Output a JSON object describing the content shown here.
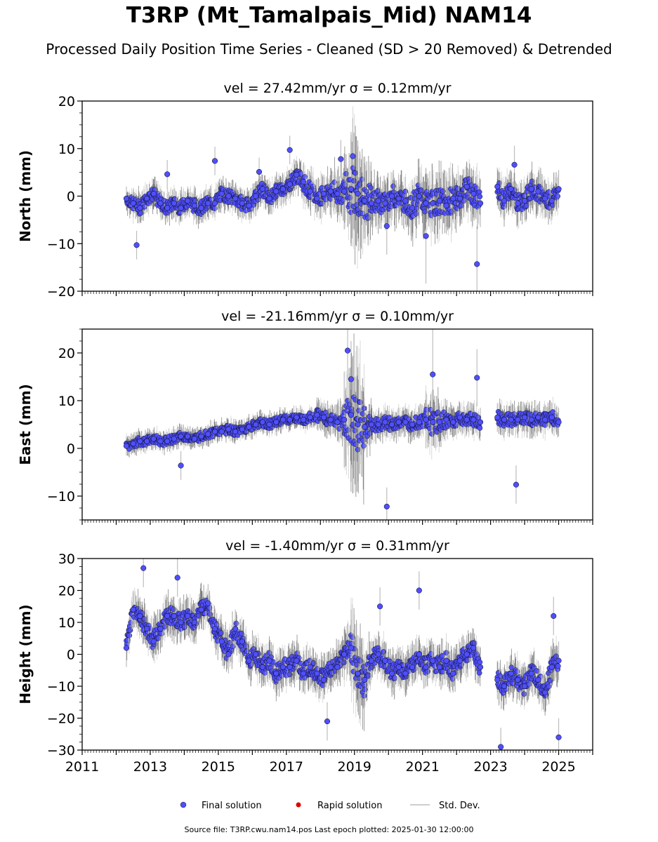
{
  "figure": {
    "title": "T3RP (Mt_Tamalpais_Mid) NAM14",
    "subtitle": "Processed Daily Position Time Series - Cleaned (SD > 20 Removed) & Detrended",
    "footer": "Source file: T3RP.cwu.nam14.pos  Last epoch plotted: 2025-01-30 12:00:00"
  },
  "legend": {
    "items": [
      "Final solution",
      "Rapid solution",
      "Std. Dev."
    ]
  },
  "colors": {
    "final": "#4f4ffd",
    "rapid": "#e00000",
    "stddev": "#bdbdbd",
    "stddev_dense": "#555555"
  },
  "chart_data": [
    {
      "type": "scatter",
      "title": "vel = 27.42mm/yr   σ = 0.12mm/yr",
      "ylabel": "North (mm)",
      "xlim": [
        2011.0,
        2026.0
      ],
      "ylim": [
        -20,
        20
      ],
      "yticks": [
        -20,
        -10,
        0,
        10,
        20
      ],
      "xticks": [
        "2011",
        "2013",
        "2015",
        "2017",
        "2019",
        "2021",
        "2023",
        "2025"
      ],
      "grid": false,
      "series": [
        {
          "name": "Final solution",
          "x": [
            2012.3,
            2012.5,
            2012.7,
            2012.9,
            2013.1,
            2013.3,
            2013.5,
            2013.7,
            2013.9,
            2014.1,
            2014.3,
            2014.5,
            2014.7,
            2014.9,
            2015.1,
            2015.3,
            2015.5,
            2015.7,
            2015.9,
            2016.1,
            2016.3,
            2016.5,
            2016.7,
            2016.9,
            2017.1,
            2017.3,
            2017.5,
            2017.7,
            2017.9,
            2018.1,
            2018.3,
            2018.5,
            2018.7,
            2018.9,
            2019.1,
            2019.3,
            2019.5,
            2019.7,
            2019.9,
            2020.1,
            2020.3,
            2020.5,
            2020.7,
            2020.9,
            2021.1,
            2021.3,
            2021.5,
            2021.7,
            2021.9,
            2022.1,
            2022.3,
            2022.5,
            2022.7,
            2023.2,
            2023.4,
            2023.6,
            2023.8,
            2024.0,
            2024.2,
            2024.4,
            2024.6,
            2024.8,
            2025.0,
            2012.6,
            2013.5,
            2014.9,
            2016.2,
            2017.1,
            2018.6,
            2018.95,
            2019.95,
            2021.1,
            2022.6,
            2023.7
          ],
          "y": [
            -0.5,
            -1.5,
            -2.5,
            -0.5,
            0.5,
            -1.5,
            -2.5,
            -1.5,
            -2.5,
            -1.0,
            -2.0,
            -2.5,
            -1.5,
            -1.5,
            0.5,
            0.0,
            -0.5,
            -1.5,
            -2.0,
            0.0,
            1.5,
            -0.5,
            1.0,
            1.5,
            2.5,
            4.5,
            3.0,
            1.0,
            -0.5,
            0.5,
            1.0,
            0.5,
            1.0,
            1.5,
            0.5,
            -1.0,
            -1.5,
            -1.0,
            -1.5,
            0.0,
            -0.5,
            -1.0,
            -2.5,
            0.0,
            -1.5,
            -1.5,
            -1.0,
            -2.0,
            -0.5,
            -0.5,
            2.0,
            0.5,
            -1.5,
            2.0,
            -1.0,
            1.5,
            -1.5,
            -1.0,
            1.5,
            1.0,
            -0.5,
            -1.0,
            1.5,
            -10.3,
            4.6,
            7.4,
            5.1,
            9.7,
            7.8,
            8.4,
            -6.3,
            -8.4,
            -14.3,
            6.6
          ],
          "err": [
            2.5,
            3,
            3,
            3,
            3,
            3,
            3,
            3,
            3,
            3,
            3,
            3,
            3,
            3,
            3,
            3,
            3,
            3,
            3,
            3,
            3,
            3,
            3,
            3,
            3,
            3,
            4,
            4,
            4,
            4,
            5,
            5,
            8,
            12,
            10,
            8,
            5,
            5,
            5,
            5,
            5,
            5,
            6,
            6,
            6,
            6,
            6,
            6,
            5,
            5,
            5,
            5,
            5,
            4,
            4,
            4,
            4,
            4,
            4,
            4,
            4,
            4,
            4,
            3,
            3,
            3,
            3,
            3,
            4,
            8,
            6,
            10,
            8,
            4
          ]
        },
        {
          "name": "Rapid solution",
          "x": [],
          "y": []
        }
      ]
    },
    {
      "type": "scatter",
      "title": "vel = -21.16mm/yr   σ = 0.10mm/yr",
      "ylabel": "East (mm)",
      "xlim": [
        2011.0,
        2026.0
      ],
      "ylim": [
        -15,
        25
      ],
      "yticks": [
        -10,
        0,
        10,
        20
      ],
      "xticks": [
        "2011",
        "2013",
        "2015",
        "2017",
        "2019",
        "2021",
        "2023",
        "2025"
      ],
      "grid": false,
      "series": [
        {
          "name": "Final solution",
          "x": [
            2012.3,
            2012.5,
            2012.7,
            2012.9,
            2013.1,
            2013.3,
            2013.5,
            2013.7,
            2013.9,
            2014.1,
            2014.3,
            2014.5,
            2014.7,
            2014.9,
            2015.1,
            2015.3,
            2015.5,
            2015.7,
            2015.9,
            2016.1,
            2016.3,
            2016.5,
            2016.7,
            2016.9,
            2017.1,
            2017.3,
            2017.5,
            2017.7,
            2017.9,
            2018.1,
            2018.3,
            2018.5,
            2018.7,
            2018.9,
            2019.1,
            2019.3,
            2019.5,
            2019.7,
            2019.9,
            2020.1,
            2020.3,
            2020.5,
            2020.7,
            2020.9,
            2021.1,
            2021.3,
            2021.5,
            2021.7,
            2021.9,
            2022.1,
            2022.3,
            2022.5,
            2022.7,
            2023.2,
            2023.4,
            2023.6,
            2023.8,
            2024.0,
            2024.2,
            2024.4,
            2024.6,
            2024.8,
            2025.0,
            2013.9,
            2018.8,
            2018.9,
            2019.95,
            2021.3,
            2022.6,
            2023.75
          ],
          "y": [
            0.5,
            1.0,
            1.5,
            1.5,
            2.0,
            1.5,
            1.5,
            2.0,
            2.5,
            2.5,
            2.0,
            2.5,
            3.0,
            3.5,
            3.5,
            4.0,
            3.5,
            4.0,
            4.5,
            5.0,
            5.5,
            5.0,
            5.5,
            6.0,
            6.0,
            6.5,
            6.0,
            6.5,
            7.0,
            6.5,
            6.0,
            5.5,
            6.0,
            7.0,
            5.0,
            4.5,
            5.0,
            5.0,
            5.5,
            5.0,
            5.5,
            5.5,
            5.0,
            5.5,
            6.0,
            5.5,
            5.5,
            6.0,
            5.5,
            6.5,
            6.0,
            6.0,
            5.5,
            6.5,
            6.0,
            6.0,
            6.0,
            6.5,
            6.0,
            6.5,
            6.0,
            6.5,
            5.5,
            -3.6,
            20.5,
            14.5,
            -12.2,
            15.5,
            14.8,
            -7.6
          ],
          "err": [
            2,
            2,
            2,
            2,
            2,
            2,
            2,
            2,
            2,
            2,
            2,
            2,
            2,
            2,
            2,
            2,
            2,
            2,
            2,
            2,
            2,
            2,
            2,
            2,
            2,
            2,
            2,
            2,
            3,
            3,
            3,
            4,
            10,
            14,
            12,
            5,
            3,
            3,
            3,
            3,
            3,
            3,
            3,
            3,
            6,
            5,
            4,
            3,
            3,
            3,
            3,
            3,
            3,
            3,
            3,
            3,
            3,
            3,
            3,
            3,
            3,
            3,
            3,
            3,
            6,
            8,
            4,
            10,
            6,
            4
          ]
        },
        {
          "name": "Rapid solution",
          "x": [],
          "y": []
        }
      ]
    },
    {
      "type": "scatter",
      "title": "vel = -1.40mm/yr   σ = 0.31mm/yr",
      "ylabel": "Height (mm)",
      "xlim": [
        2011.0,
        2026.0
      ],
      "ylim": [
        -30,
        30
      ],
      "yticks": [
        -30,
        -20,
        -10,
        0,
        10,
        20,
        30
      ],
      "xticks": [
        "2011",
        "2013",
        "2015",
        "2017",
        "2019",
        "2021",
        "2023",
        "2025"
      ],
      "grid": false,
      "series": [
        {
          "name": "Final solution",
          "x": [
            2012.3,
            2012.5,
            2012.7,
            2012.9,
            2013.1,
            2013.3,
            2013.5,
            2013.7,
            2013.9,
            2014.1,
            2014.3,
            2014.5,
            2014.7,
            2014.9,
            2015.1,
            2015.3,
            2015.5,
            2015.7,
            2015.9,
            2016.1,
            2016.3,
            2016.5,
            2016.7,
            2016.9,
            2017.1,
            2017.3,
            2017.5,
            2017.7,
            2017.9,
            2018.1,
            2018.3,
            2018.5,
            2018.7,
            2018.9,
            2019.1,
            2019.3,
            2019.5,
            2019.7,
            2019.9,
            2020.1,
            2020.3,
            2020.5,
            2020.7,
            2020.9,
            2021.1,
            2021.3,
            2021.5,
            2021.7,
            2021.9,
            2022.1,
            2022.3,
            2022.5,
            2022.7,
            2023.2,
            2023.4,
            2023.6,
            2023.8,
            2024.0,
            2024.2,
            2024.4,
            2024.6,
            2024.8,
            2025.0,
            2012.8,
            2013.8,
            2018.2,
            2019.75,
            2020.9,
            2023.3,
            2024.85,
            2025.0
          ],
          "y": [
            2,
            14,
            12,
            8,
            4,
            8,
            12,
            12,
            10,
            12,
            10,
            14,
            16,
            8,
            4,
            0,
            8,
            4,
            -2,
            0,
            -4,
            -2,
            -6,
            -4,
            -4,
            -2,
            -6,
            -4,
            -6,
            -8,
            -4,
            -4,
            0,
            2,
            -6,
            -8,
            -2,
            0,
            -2,
            -6,
            -4,
            -6,
            -4,
            0,
            -4,
            -2,
            -4,
            -2,
            -6,
            -2,
            0,
            2,
            -4,
            -8,
            -10,
            -6,
            -8,
            -10,
            -6,
            -8,
            -12,
            -4,
            -2,
            27,
            24,
            -21,
            15,
            20,
            -29,
            12,
            -26
          ],
          "err": [
            6,
            6,
            6,
            6,
            6,
            6,
            6,
            6,
            6,
            6,
            6,
            6,
            6,
            6,
            6,
            6,
            6,
            6,
            6,
            6,
            6,
            6,
            6,
            6,
            6,
            6,
            6,
            6,
            6,
            6,
            6,
            6,
            8,
            12,
            12,
            8,
            6,
            6,
            6,
            6,
            6,
            6,
            6,
            6,
            6,
            6,
            6,
            6,
            6,
            6,
            6,
            6,
            6,
            6,
            6,
            6,
            6,
            6,
            6,
            6,
            6,
            6,
            6,
            6,
            6,
            6,
            6,
            6,
            6,
            6,
            6
          ]
        },
        {
          "name": "Rapid solution",
          "x": [],
          "y": []
        }
      ]
    }
  ]
}
